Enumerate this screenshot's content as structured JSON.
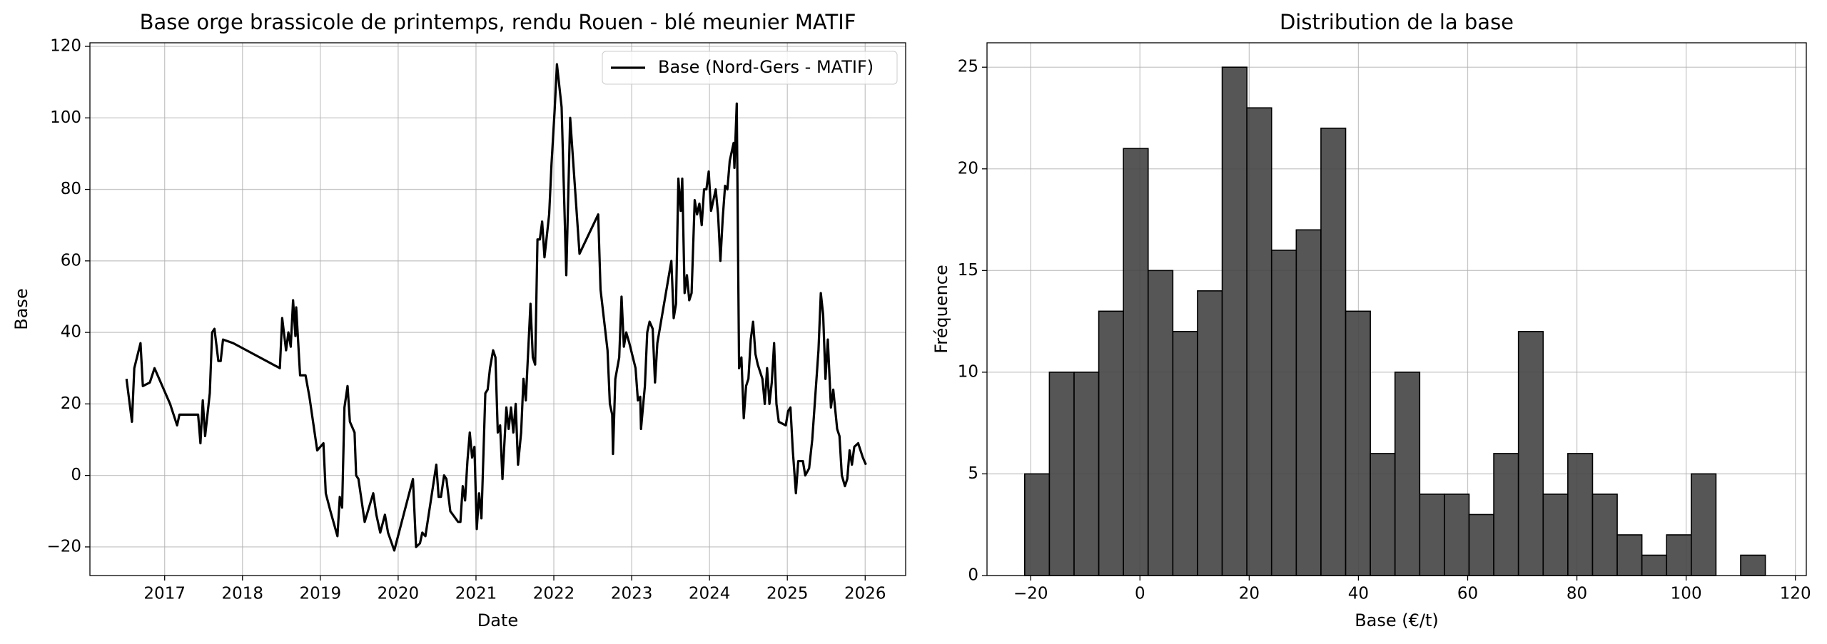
{
  "chart_data": [
    {
      "type": "line",
      "title": "Base orge brassicole de printemps, rendu Rouen - blé meunier MATIF",
      "xlabel": "Date",
      "ylabel": "Base",
      "x": [
        2016.51,
        2016.58,
        2016.61,
        2016.69,
        2016.72,
        2016.81,
        2016.87,
        2017.07,
        2017.16,
        2017.19,
        2017.43,
        2017.46,
        2017.49,
        2017.52,
        2017.58,
        2017.61,
        2017.64,
        2017.69,
        2017.72,
        2017.75,
        2017.88,
        2018.48,
        2018.51,
        2018.56,
        2018.59,
        2018.62,
        2018.65,
        2018.68,
        2018.69,
        2018.74,
        2018.81,
        2018.86,
        2018.96,
        2019.04,
        2019.07,
        2019.13,
        2019.22,
        2019.25,
        2019.28,
        2019.31,
        2019.35,
        2019.38,
        2019.44,
        2019.46,
        2019.49,
        2019.57,
        2019.68,
        2019.72,
        2019.77,
        2019.83,
        2019.87,
        2019.95,
        2020.19,
        2020.23,
        2020.28,
        2020.31,
        2020.35,
        2020.49,
        2020.52,
        2020.55,
        2020.59,
        2020.62,
        2020.67,
        2020.77,
        2020.8,
        2020.83,
        2020.86,
        2020.89,
        2020.92,
        2020.95,
        2020.98,
        2021.01,
        2021.04,
        2021.07,
        2021.12,
        2021.15,
        2021.18,
        2021.22,
        2021.25,
        2021.28,
        2021.31,
        2021.34,
        2021.39,
        2021.42,
        2021.45,
        2021.48,
        2021.51,
        2021.54,
        2021.58,
        2021.61,
        2021.64,
        2021.7,
        2021.73,
        2021.76,
        2021.79,
        2021.82,
        2021.85,
        2021.88,
        2021.94,
        2021.97,
        2022.01,
        2022.04,
        2022.1,
        2022.16,
        2022.21,
        2022.33,
        2022.57,
        2022.6,
        2022.69,
        2022.72,
        2022.75,
        2022.76,
        2022.79,
        2022.84,
        2022.87,
        2022.9,
        2022.93,
        2022.97,
        2023.05,
        2023.08,
        2023.11,
        2023.12,
        2023.17,
        2023.2,
        2023.23,
        2023.27,
        2023.3,
        2023.33,
        2023.51,
        2023.54,
        2023.57,
        2023.6,
        2023.63,
        2023.65,
        2023.68,
        2023.71,
        2023.74,
        2023.77,
        2023.81,
        2023.84,
        2023.87,
        2023.9,
        2023.93,
        2023.96,
        2023.99,
        2024.02,
        2024.08,
        2024.11,
        2024.14,
        2024.17,
        2024.2,
        2024.23,
        2024.26,
        2024.31,
        2024.32,
        2024.35,
        2024.38,
        2024.41,
        2024.44,
        2024.47,
        2024.5,
        2024.53,
        2024.56,
        2024.59,
        2024.62,
        2024.68,
        2024.71,
        2024.74,
        2024.77,
        2024.8,
        2024.83,
        2024.86,
        2024.89,
        2024.98,
        2025.01,
        2025.04,
        2025.07,
        2025.11,
        2025.14,
        2025.2,
        2025.23,
        2025.28,
        2025.32,
        2025.4,
        2025.43,
        2025.46,
        2025.49,
        2025.52,
        2025.56,
        2025.59,
        2025.64,
        2025.67,
        2025.7,
        2025.74,
        2025.77,
        2025.8,
        2025.83,
        2025.86,
        2025.91,
        2025.97,
        2026.01
      ],
      "series": [
        {
          "name": "Base (Nord-Gers - MATIF)",
          "color": "#000000",
          "values": [
            27,
            15,
            30,
            37,
            25,
            26,
            30,
            20,
            14,
            17,
            17,
            9,
            21,
            11,
            23,
            40,
            41,
            32,
            32,
            38,
            37,
            30,
            44,
            35,
            40,
            36,
            49,
            39,
            47,
            28,
            28,
            22,
            7,
            9,
            -5,
            -10,
            -17,
            -6,
            -9,
            19,
            25,
            15,
            12,
            0,
            -1,
            -13,
            -5,
            -11,
            -16,
            -11,
            -16,
            -21,
            -1,
            -20,
            -19,
            -16,
            -17,
            3,
            -6,
            -6,
            0,
            -1,
            -10,
            -13,
            -13,
            -3,
            -7,
            4,
            12,
            5,
            8,
            -15,
            -5,
            -12,
            23,
            24,
            30,
            35,
            33,
            12,
            14,
            -1,
            19,
            13,
            19,
            12,
            20,
            3,
            12,
            27,
            21,
            48,
            33,
            31,
            66,
            66,
            71,
            61,
            73,
            87,
            102,
            115,
            103,
            56,
            100,
            62,
            73,
            52,
            35,
            20,
            17,
            6,
            27,
            33,
            50,
            36,
            40,
            37,
            30,
            21,
            22,
            13,
            25,
            40,
            43,
            41,
            26,
            37,
            60,
            44,
            48,
            83,
            74,
            83,
            51,
            56,
            49,
            51,
            77,
            73,
            76,
            70,
            80,
            80,
            85,
            74,
            80,
            73,
            60,
            72,
            81,
            80,
            88,
            93,
            86,
            104,
            30,
            33,
            16,
            25,
            27,
            38,
            43,
            34,
            31,
            27,
            20,
            30,
            20,
            26,
            37,
            20,
            15,
            14,
            18,
            19,
            7,
            -5,
            4,
            4,
            0,
            2,
            10,
            35,
            51,
            45,
            27,
            38,
            19,
            24,
            13,
            11,
            0,
            -3,
            -1,
            7,
            3,
            8,
            9,
            5,
            3
          ]
        }
      ],
      "xlim": [
        2016.04,
        2026.52
      ],
      "ylim": [
        -28,
        121
      ],
      "xticks": [
        2017,
        2018,
        2019,
        2020,
        2021,
        2022,
        2023,
        2024,
        2025,
        2026
      ],
      "yticks": [
        {
          "value": -20,
          "label": "−20"
        },
        0,
        20,
        40,
        60,
        80,
        100,
        120
      ],
      "grid": true,
      "legend": "upper right"
    },
    {
      "type": "histogram",
      "title": "Distribution de la base",
      "xlabel": "Base (€/t)",
      "ylabel": "Fréquence",
      "bins": [
        -21.1,
        -16.58,
        -12.06,
        -7.54,
        -3.02,
        1.5,
        6.02,
        10.54,
        15.06,
        19.58,
        24.1,
        28.62,
        33.14,
        37.66,
        42.18,
        46.7,
        51.22,
        55.74,
        60.26,
        64.78,
        69.3,
        73.82,
        78.34,
        82.86,
        87.38,
        91.9,
        96.42,
        100.94,
        105.46,
        109.98,
        114.5
      ],
      "values": [
        5,
        10,
        10,
        13,
        21,
        15,
        12,
        14,
        25,
        23,
        16,
        17,
        22,
        13,
        6,
        10,
        4,
        4,
        3,
        6,
        12,
        4,
        6,
        4,
        2,
        1,
        2,
        5,
        0,
        1
      ],
      "color": "#444444",
      "edgecolor": "#000000",
      "xlim": [
        -28,
        122
      ],
      "ylim": [
        0,
        26.2
      ],
      "xticks": [
        {
          "value": -20,
          "label": "−20"
        },
        0,
        20,
        40,
        60,
        80,
        100,
        120
      ],
      "yticks": [
        0,
        5,
        10,
        15,
        20,
        25
      ],
      "grid": true
    }
  ]
}
